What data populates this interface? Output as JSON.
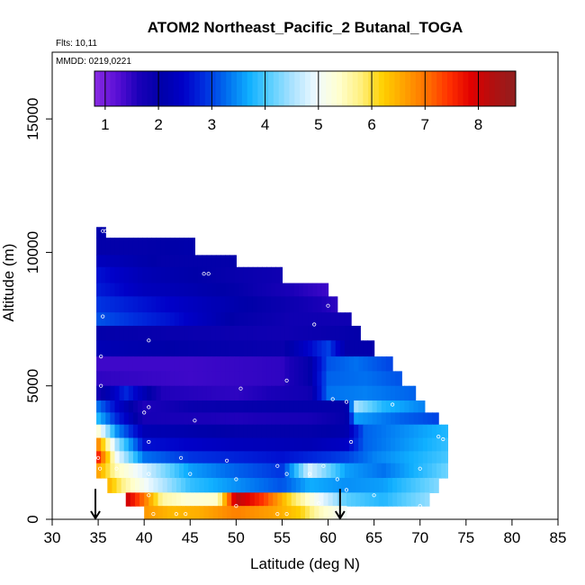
{
  "chart_data": {
    "type": "heatmap",
    "title": "ATOM2 Northeast_Pacific_2 Butanal_TOGA",
    "annotations": {
      "flights": "Flts: 10,11",
      "dates": "MMDD: 0219,0221"
    },
    "xlabel": "Latitude (deg N)",
    "ylabel": "Altitude (m)",
    "xlim": [
      30,
      85
    ],
    "ylim": [
      0,
      17500
    ],
    "x_ticks": [
      30,
      35,
      40,
      45,
      50,
      55,
      60,
      65,
      70,
      75,
      80,
      85
    ],
    "y_ticks": [
      0,
      5000,
      10000,
      15000
    ],
    "colorbar": {
      "range": [
        0.8,
        8.7
      ],
      "ticks": [
        1,
        2,
        3,
        4,
        5,
        6,
        7,
        8
      ],
      "colors": [
        "#8a2be2",
        "#5a0fd6",
        "#1a00b8",
        "#0000a8",
        "#0000c8",
        "#0030e0",
        "#0070f0",
        "#10b0ff",
        "#60d0ff",
        "#b0e4ff",
        "#f0faff",
        "#ffffd0",
        "#fff080",
        "#ffd000",
        "#ffa000",
        "#ff7000",
        "#ff3000",
        "#e00000",
        "#b01010",
        "#902020"
      ]
    },
    "layers": [
      {
        "alt": [
          10550,
          10950
        ],
        "lat": [
          34.8,
          35.8
        ],
        "v": [
          [
            35,
            2.1
          ]
        ]
      },
      {
        "alt": [
          9900,
          10550
        ],
        "lat": [
          34.8,
          45.5
        ],
        "v": [
          [
            35,
            2.0
          ],
          [
            40,
            2.0
          ],
          [
            45.5,
            2.1
          ]
        ]
      },
      {
        "alt": [
          9450,
          9900
        ],
        "lat": [
          34.8,
          50.0
        ],
        "v": [
          [
            35,
            2.3
          ],
          [
            42,
            2.0
          ],
          [
            50,
            2.0
          ]
        ]
      },
      {
        "alt": [
          8850,
          9450
        ],
        "lat": [
          34.8,
          55.0
        ],
        "v": [
          [
            35,
            2.6
          ],
          [
            40,
            2.2
          ],
          [
            47,
            2.0
          ],
          [
            55,
            1.8
          ]
        ]
      },
      {
        "alt": [
          8350,
          8850
        ],
        "lat": [
          34.8,
          60.0
        ],
        "v": [
          [
            35,
            2.7
          ],
          [
            40,
            2.3
          ],
          [
            50,
            2.0
          ],
          [
            55,
            1.7
          ],
          [
            60,
            1.4
          ]
        ]
      },
      {
        "alt": [
          7750,
          8350
        ],
        "lat": [
          34.8,
          61.0
        ],
        "v": [
          [
            35,
            2.9
          ],
          [
            42,
            2.5
          ],
          [
            50,
            2.1
          ],
          [
            57,
            1.8
          ],
          [
            61,
            1.5
          ]
        ]
      },
      {
        "alt": [
          7250,
          7750
        ],
        "lat": [
          34.8,
          62.5
        ],
        "v": [
          [
            35,
            3.1
          ],
          [
            43,
            2.6
          ],
          [
            50,
            2.0
          ],
          [
            56,
            1.8
          ],
          [
            62.5,
            1.8
          ]
        ]
      },
      {
        "alt": [
          6700,
          7250
        ],
        "lat": [
          34.8,
          63.5
        ],
        "v": [
          [
            35,
            2.0
          ],
          [
            45,
            1.9
          ],
          [
            55,
            1.8
          ],
          [
            63.5,
            2.0
          ]
        ]
      },
      {
        "alt": [
          6100,
          6700
        ],
        "lat": [
          34.8,
          65.0
        ],
        "v": [
          [
            35,
            2.2
          ],
          [
            45,
            2.0
          ],
          [
            55,
            1.9
          ],
          [
            58,
            2.5
          ],
          [
            60,
            3.0
          ],
          [
            62,
            2.0
          ],
          [
            65,
            2.0
          ]
        ]
      },
      {
        "alt": [
          5550,
          6100
        ],
        "lat": [
          34.8,
          67.0
        ],
        "v": [
          [
            35,
            1.4
          ],
          [
            45,
            1.4
          ],
          [
            55,
            1.5
          ],
          [
            58,
            2.0
          ],
          [
            60,
            3.1
          ],
          [
            63,
            3.3
          ],
          [
            67,
            3.0
          ]
        ]
      },
      {
        "alt": [
          5000,
          5550
        ],
        "lat": [
          34.8,
          68.0
        ],
        "v": [
          [
            35,
            1.5
          ],
          [
            45,
            1.4
          ],
          [
            55,
            1.5
          ],
          [
            58,
            2.0
          ],
          [
            60,
            3.2
          ],
          [
            64,
            3.3
          ],
          [
            68,
            3.1
          ]
        ]
      },
      {
        "alt": [
          4450,
          5000
        ],
        "lat": [
          34.8,
          69.5
        ],
        "v": [
          [
            35,
            1.8
          ],
          [
            38,
            2.8
          ],
          [
            42,
            1.6
          ],
          [
            50,
            1.5
          ],
          [
            58,
            1.8
          ],
          [
            60,
            3.3
          ],
          [
            64,
            3.4
          ],
          [
            69.5,
            3.2
          ]
        ]
      },
      {
        "alt": [
          4000,
          4450
        ],
        "lat": [
          34.8,
          70.5
        ],
        "v": [
          [
            35,
            3.3
          ],
          [
            37,
            2.5
          ],
          [
            40,
            1.6
          ],
          [
            45,
            1.9
          ],
          [
            55,
            2.0
          ],
          [
            62,
            2.0
          ],
          [
            63,
            4.5
          ],
          [
            66,
            3.8
          ],
          [
            70.5,
            3.4
          ]
        ]
      },
      {
        "alt": [
          3550,
          4000
        ],
        "lat": [
          34.8,
          72.0
        ],
        "v": [
          [
            35,
            3.8
          ],
          [
            37,
            2.8
          ],
          [
            40,
            1.7
          ],
          [
            50,
            1.6
          ],
          [
            58,
            1.7
          ],
          [
            62,
            2.0
          ],
          [
            63,
            3.6
          ],
          [
            68,
            3.2
          ],
          [
            72,
            3.0
          ]
        ]
      },
      {
        "alt": [
          3050,
          3550
        ],
        "lat": [
          34.8,
          73.0
        ],
        "v": [
          [
            35,
            5.3
          ],
          [
            37,
            3.5
          ],
          [
            40,
            2.2
          ],
          [
            50,
            2.0
          ],
          [
            58,
            2.0
          ],
          [
            62,
            2.1
          ],
          [
            64,
            3.2
          ],
          [
            73,
            3.8
          ]
        ]
      },
      {
        "alt": [
          2550,
          3050
        ],
        "lat": [
          34.8,
          73.0
        ],
        "v": [
          [
            35,
            6.8
          ],
          [
            37,
            4.5
          ],
          [
            40,
            2.6
          ],
          [
            50,
            2.3
          ],
          [
            58,
            2.2
          ],
          [
            62,
            2.4
          ],
          [
            64,
            3.2
          ],
          [
            73,
            3.9
          ]
        ]
      },
      {
        "alt": [
          2100,
          2550
        ],
        "lat": [
          34.8,
          73.0
        ],
        "v": [
          [
            35,
            7.6
          ],
          [
            37,
            5.0
          ],
          [
            40,
            3.3
          ],
          [
            45,
            2.9
          ],
          [
            55,
            2.6
          ],
          [
            62,
            3.0
          ],
          [
            65,
            3.4
          ],
          [
            73,
            4.0
          ]
        ]
      },
      {
        "alt": [
          1550,
          2100
        ],
        "lat": [
          34.8,
          73.0
        ],
        "v": [
          [
            35,
            6.6
          ],
          [
            37,
            5.5
          ],
          [
            40,
            4.8
          ],
          [
            45,
            3.6
          ],
          [
            50,
            3.2
          ],
          [
            55,
            2.9
          ],
          [
            58,
            4.8
          ],
          [
            62,
            3.6
          ],
          [
            66,
            3.3
          ],
          [
            73,
            4.2
          ]
        ]
      },
      {
        "alt": [
          1000,
          1550
        ],
        "lat": [
          36.0,
          72.0
        ],
        "v": [
          [
            36,
            6.5
          ],
          [
            38,
            5.6
          ],
          [
            41,
            4.8
          ],
          [
            45,
            3.9
          ],
          [
            50,
            3.5
          ],
          [
            55,
            3.1
          ],
          [
            58,
            3.7
          ],
          [
            62,
            3.5
          ],
          [
            66,
            3.6
          ],
          [
            72,
            4.3
          ]
        ]
      },
      {
        "alt": [
          500,
          1000
        ],
        "lat": [
          38.0,
          71.0
        ],
        "v": [
          [
            38,
            8.1
          ],
          [
            40,
            7.0
          ],
          [
            42,
            5.6
          ],
          [
            45,
            5.3
          ],
          [
            48,
            5.4
          ],
          [
            50,
            8.2
          ],
          [
            53,
            7.4
          ],
          [
            56,
            6.0
          ],
          [
            58,
            5.3
          ],
          [
            62,
            4.1
          ],
          [
            66,
            3.8
          ],
          [
            71,
            4.4
          ]
        ]
      },
      {
        "alt": [
          0,
          500
        ],
        "lat": [
          40.0,
          62.0
        ],
        "v": [
          [
            40,
            6.7
          ],
          [
            43,
            6.4
          ],
          [
            46,
            6.5
          ],
          [
            50,
            6.9
          ],
          [
            54,
            6.6
          ],
          [
            57,
            6.2
          ],
          [
            59,
            5.5
          ],
          [
            62,
            5.0
          ]
        ]
      }
    ],
    "sample_points": [
      [
        35.5,
        10800
      ],
      [
        35.8,
        10800
      ],
      [
        46.5,
        9200
      ],
      [
        47.0,
        9200
      ],
      [
        35.5,
        7600
      ],
      [
        40.5,
        6700
      ],
      [
        58.5,
        7300
      ],
      [
        60.0,
        8000
      ],
      [
        35.3,
        6100
      ],
      [
        35.3,
        5000
      ],
      [
        40.5,
        4200
      ],
      [
        40.0,
        4000
      ],
      [
        45.5,
        3700
      ],
      [
        50.5,
        4900
      ],
      [
        55.5,
        5200
      ],
      [
        60.5,
        4500
      ],
      [
        62.0,
        4400
      ],
      [
        67.0,
        4300
      ],
      [
        72.0,
        3100
      ],
      [
        72.5,
        3000
      ],
      [
        40.5,
        2900
      ],
      [
        44.0,
        2300
      ],
      [
        49.0,
        2200
      ],
      [
        54.5,
        2000
      ],
      [
        59.5,
        2000
      ],
      [
        62.5,
        2900
      ],
      [
        70.0,
        1900
      ],
      [
        35.0,
        2300
      ],
      [
        35.2,
        1900
      ],
      [
        37.0,
        1900
      ],
      [
        40.5,
        1700
      ],
      [
        45.0,
        1700
      ],
      [
        50.0,
        1500
      ],
      [
        55.5,
        1700
      ],
      [
        58.0,
        1700
      ],
      [
        61.0,
        1500
      ],
      [
        65.0,
        900
      ],
      [
        70.0,
        500
      ],
      [
        40.5,
        900
      ],
      [
        41.0,
        200
      ],
      [
        43.5,
        200
      ],
      [
        44.5,
        200
      ],
      [
        50.0,
        500
      ],
      [
        54.5,
        200
      ],
      [
        55.5,
        200
      ],
      [
        59.0,
        600
      ],
      [
        61.0,
        300
      ],
      [
        62.0,
        1100
      ]
    ],
    "markers": [
      {
        "lat": 34.7,
        "alt_top": 600,
        "alt_bottom": 0
      },
      {
        "lat": 61.3,
        "alt_top": 600,
        "alt_bottom": 0
      }
    ]
  }
}
